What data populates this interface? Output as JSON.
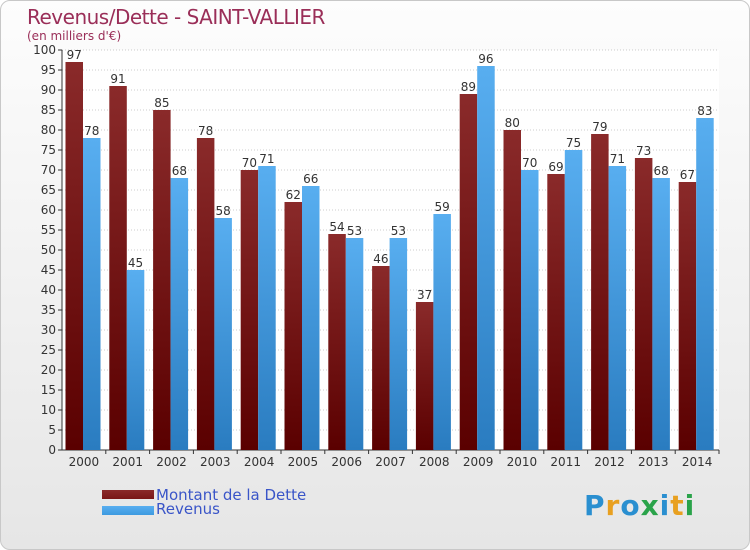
{
  "colors": {
    "dette": "#7a1616",
    "revenus": "#3d9ae0",
    "title": "#9a2e58",
    "legend_text": "#3a55c8",
    "grid": "#999999"
  },
  "legend": {
    "dette": "Montant de la Dette",
    "revenus": "Revenus"
  },
  "logo": "Proxiti",
  "chart_data": {
    "type": "bar",
    "title": "Revenus/Dette - SAINT-VALLIER",
    "subtitle": "(en milliers d'€)",
    "xlabel": "",
    "ylabel": "",
    "ylim": [
      0,
      100
    ],
    "ytick_step": 5,
    "grid": true,
    "legend_position": "bottom-left",
    "categories": [
      "2000",
      "2001",
      "2002",
      "2003",
      "2004",
      "2005",
      "2006",
      "2007",
      "2008",
      "2009",
      "2010",
      "2011",
      "2012",
      "2013",
      "2014"
    ],
    "series": [
      {
        "name": "Montant de la Dette",
        "values": [
          97,
          91,
          85,
          78,
          70,
          62,
          54,
          46,
          37,
          89,
          80,
          69,
          79,
          73,
          67
        ]
      },
      {
        "name": "Revenus",
        "values": [
          78,
          45,
          68,
          58,
          71,
          66,
          53,
          53,
          59,
          96,
          70,
          75,
          71,
          68,
          83
        ]
      }
    ]
  }
}
